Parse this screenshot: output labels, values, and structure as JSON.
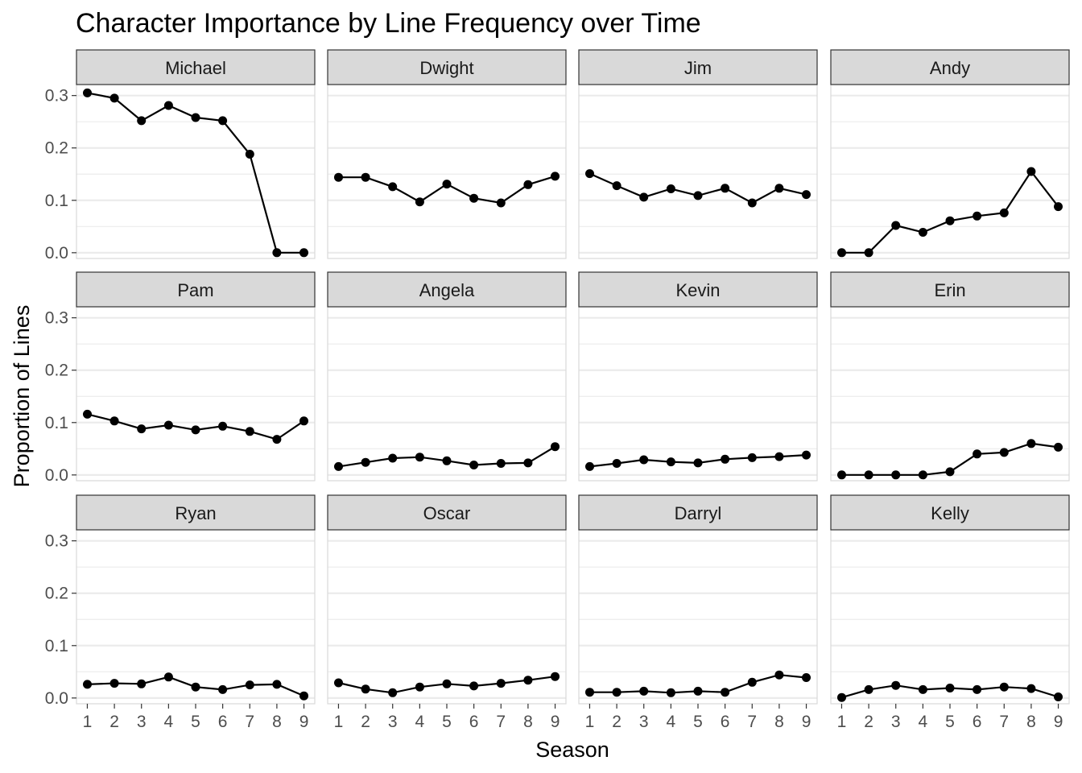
{
  "chart_data": {
    "type": "line",
    "title": "Character Importance by Line Frequency over Time",
    "xlabel": "Season",
    "ylabel": "Proportion of Lines",
    "x": [
      1,
      2,
      3,
      4,
      5,
      6,
      7,
      8,
      9
    ],
    "x_ticks": [
      "1",
      "2",
      "3",
      "4",
      "5",
      "6",
      "7",
      "8",
      "9"
    ],
    "y_ticks": [
      "0.0",
      "0.1",
      "0.2",
      "0.3"
    ],
    "xlim": [
      0.6,
      9.4
    ],
    "ylim": [
      -0.011,
      0.321
    ],
    "grid": true,
    "facets": "3 rows x 4 columns, shared axes",
    "colors": {
      "line": "#000000",
      "strip_fill": "#d9d9d9",
      "strip_border": "#333333",
      "grid": "#ebebeb",
      "panel_border": "#d9d9d9",
      "tick_label": "#4d4d4d"
    },
    "panels": [
      {
        "name": "Michael",
        "values": [
          0.305,
          0.295,
          0.252,
          0.281,
          0.258,
          0.252,
          0.188,
          0.0,
          0.0
        ]
      },
      {
        "name": "Dwight",
        "values": [
          0.144,
          0.144,
          0.126,
          0.097,
          0.131,
          0.104,
          0.095,
          0.13,
          0.146
        ]
      },
      {
        "name": "Jim",
        "values": [
          0.151,
          0.128,
          0.106,
          0.122,
          0.109,
          0.123,
          0.095,
          0.123,
          0.111
        ]
      },
      {
        "name": "Andy",
        "values": [
          0.0,
          0.0,
          0.052,
          0.039,
          0.061,
          0.07,
          0.076,
          0.155,
          0.088
        ]
      },
      {
        "name": "Pam",
        "values": [
          0.116,
          0.103,
          0.088,
          0.095,
          0.086,
          0.093,
          0.083,
          0.068,
          0.103
        ]
      },
      {
        "name": "Angela",
        "values": [
          0.016,
          0.024,
          0.032,
          0.034,
          0.027,
          0.019,
          0.022,
          0.023,
          0.054
        ]
      },
      {
        "name": "Kevin",
        "values": [
          0.016,
          0.022,
          0.029,
          0.025,
          0.023,
          0.03,
          0.033,
          0.035,
          0.038
        ]
      },
      {
        "name": "Erin",
        "values": [
          0.0,
          0.0,
          0.0,
          0.0,
          0.006,
          0.04,
          0.043,
          0.06,
          0.053
        ]
      },
      {
        "name": "Ryan",
        "values": [
          0.026,
          0.028,
          0.027,
          0.04,
          0.021,
          0.016,
          0.025,
          0.026,
          0.004
        ]
      },
      {
        "name": "Oscar",
        "values": [
          0.029,
          0.017,
          0.01,
          0.021,
          0.027,
          0.023,
          0.028,
          0.034,
          0.041
        ]
      },
      {
        "name": "Darryl",
        "values": [
          0.011,
          0.011,
          0.013,
          0.01,
          0.013,
          0.011,
          0.03,
          0.044,
          0.039
        ]
      },
      {
        "name": "Kelly",
        "values": [
          0.001,
          0.016,
          0.024,
          0.016,
          0.019,
          0.016,
          0.021,
          0.018,
          0.002
        ]
      }
    ]
  }
}
